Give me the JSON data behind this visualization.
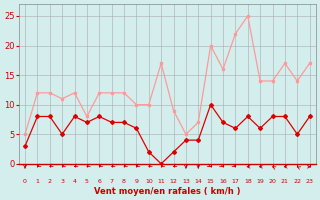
{
  "hours": [
    0,
    1,
    2,
    3,
    4,
    5,
    6,
    7,
    8,
    9,
    10,
    11,
    12,
    13,
    14,
    15,
    16,
    17,
    18,
    19,
    20,
    21,
    22,
    23
  ],
  "wind_avg": [
    3,
    8,
    8,
    5,
    8,
    7,
    8,
    7,
    7,
    6,
    2,
    0,
    2,
    4,
    4,
    10,
    7,
    6,
    8,
    6,
    8,
    8,
    5,
    8
  ],
  "wind_gust": [
    5,
    12,
    12,
    11,
    12,
    8,
    12,
    12,
    12,
    10,
    10,
    17,
    9,
    5,
    7,
    20,
    16,
    22,
    25,
    14,
    14,
    17,
    14,
    17
  ],
  "bg_color": "#d4eeee",
  "grid_color": "#aaaaaa",
  "line_avg_color": "#dd0000",
  "line_gust_color": "#ff9999",
  "xlabel": "Vent moyen/en rafales ( km/h )",
  "xlabel_color": "#cc0000",
  "tick_color": "#cc0000",
  "ylim": [
    0,
    27
  ],
  "yticks": [
    0,
    5,
    10,
    15,
    20,
    25
  ],
  "arrow_color": "#cc0000",
  "arrow_angles_deg": [
    270,
    225,
    225,
    225,
    225,
    225,
    225,
    225,
    225,
    225,
    225,
    225,
    225,
    270,
    270,
    315,
    315,
    315,
    180,
    180,
    135,
    180,
    135,
    0
  ]
}
